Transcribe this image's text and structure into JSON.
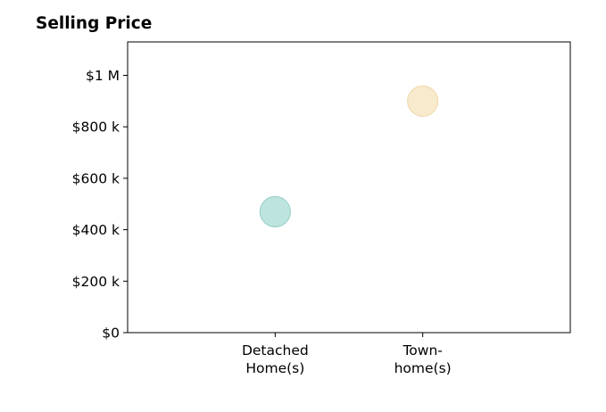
{
  "chart_data": {
    "type": "scatter",
    "title": "Selling Price",
    "xlabel": "",
    "ylabel": "",
    "categories": [
      [
        "Detached",
        "Home(s)"
      ],
      [
        "Town-",
        "home(s)"
      ]
    ],
    "values": [
      470000,
      900000
    ],
    "point_colors": [
      "#b2dfd9",
      "#f7e6c4"
    ],
    "point_edge_colors": [
      "#9dd3cc",
      "#f2dcb0"
    ],
    "yticks": [
      0,
      200000,
      400000,
      600000,
      800000,
      1000000
    ],
    "ytick_labels": [
      "$0",
      "$200 k",
      "$400 k",
      "$600 k",
      "$800 k",
      "$1 M"
    ],
    "ylim": [
      0,
      1130000
    ],
    "xlim": [
      0,
      3
    ],
    "grid": false,
    "legend": "none"
  }
}
